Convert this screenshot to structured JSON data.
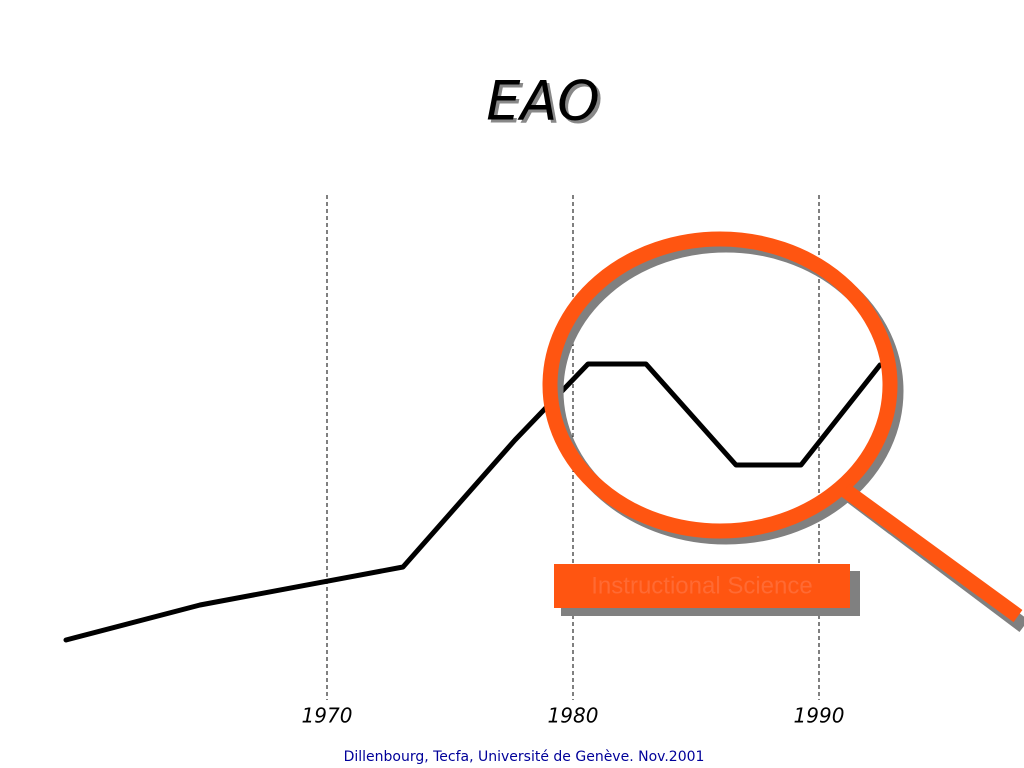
{
  "title": "EAO",
  "timeline": {
    "years": [
      "1970",
      "1980",
      "1990"
    ]
  },
  "callout": "Instructional Science",
  "footer": "Dillenbourg, Tecfa, Université de Genève. Nov.2001"
}
